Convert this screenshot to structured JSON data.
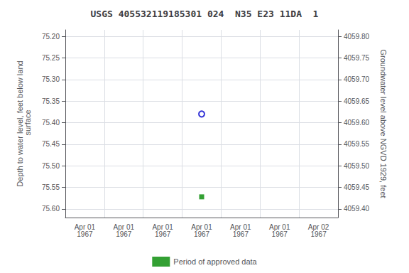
{
  "chart_data": {
    "type": "scatter",
    "title": "USGS 405532119185301 024  N35 E23 11DA  1",
    "ylabel": "Depth to water level, feet below land\n surface",
    "y2label": "Groundwater level above NGVD 1929, feet",
    "categories": [
      "Apr 01\n1967",
      "Apr 01\n1967",
      "Apr 01\n1967",
      "Apr 01\n1967",
      "Apr 01\n1967",
      "Apr 01\n1967",
      "Apr 02\n1967"
    ],
    "series": [
      {
        "color": "#0000cc",
        "marker": "open circle",
        "values": [
          null,
          null,
          null,
          75.38,
          null,
          null,
          null
        ]
      },
      {
        "name": "Period of approved data",
        "color": "#008800",
        "marker": "square",
        "values": [
          null,
          null,
          null,
          75.572,
          null,
          null,
          null
        ]
      }
    ],
    "ylim": [
      75.62,
      75.185
    ],
    "yticks": [
      {
        "value": 75.2,
        "label": "75.20"
      },
      75.25,
      {
        "value": 75.3,
        "label": "75.30"
      },
      75.35,
      {
        "value": 75.4,
        "label": "75.40"
      },
      75.45,
      {
        "value": 75.5,
        "label": "75.50"
      },
      75.55,
      {
        "value": 75.6,
        "label": "75.60"
      }
    ],
    "y2lim": [
      4059.38,
      4059.815
    ],
    "y2ticks": [
      {
        "value": 4059.4,
        "label": "4059.40"
      },
      4059.45,
      {
        "value": 4059.5,
        "label": "4059.50"
      },
      4059.55,
      {
        "value": 4059.6,
        "label": "4059.60"
      },
      4059.65,
      {
        "value": 4059.7,
        "label": "4059.70"
      },
      4059.75,
      {
        "value": 4059.8,
        "label": "4059.80"
      }
    ],
    "grid": true,
    "legend": "bottom"
  }
}
